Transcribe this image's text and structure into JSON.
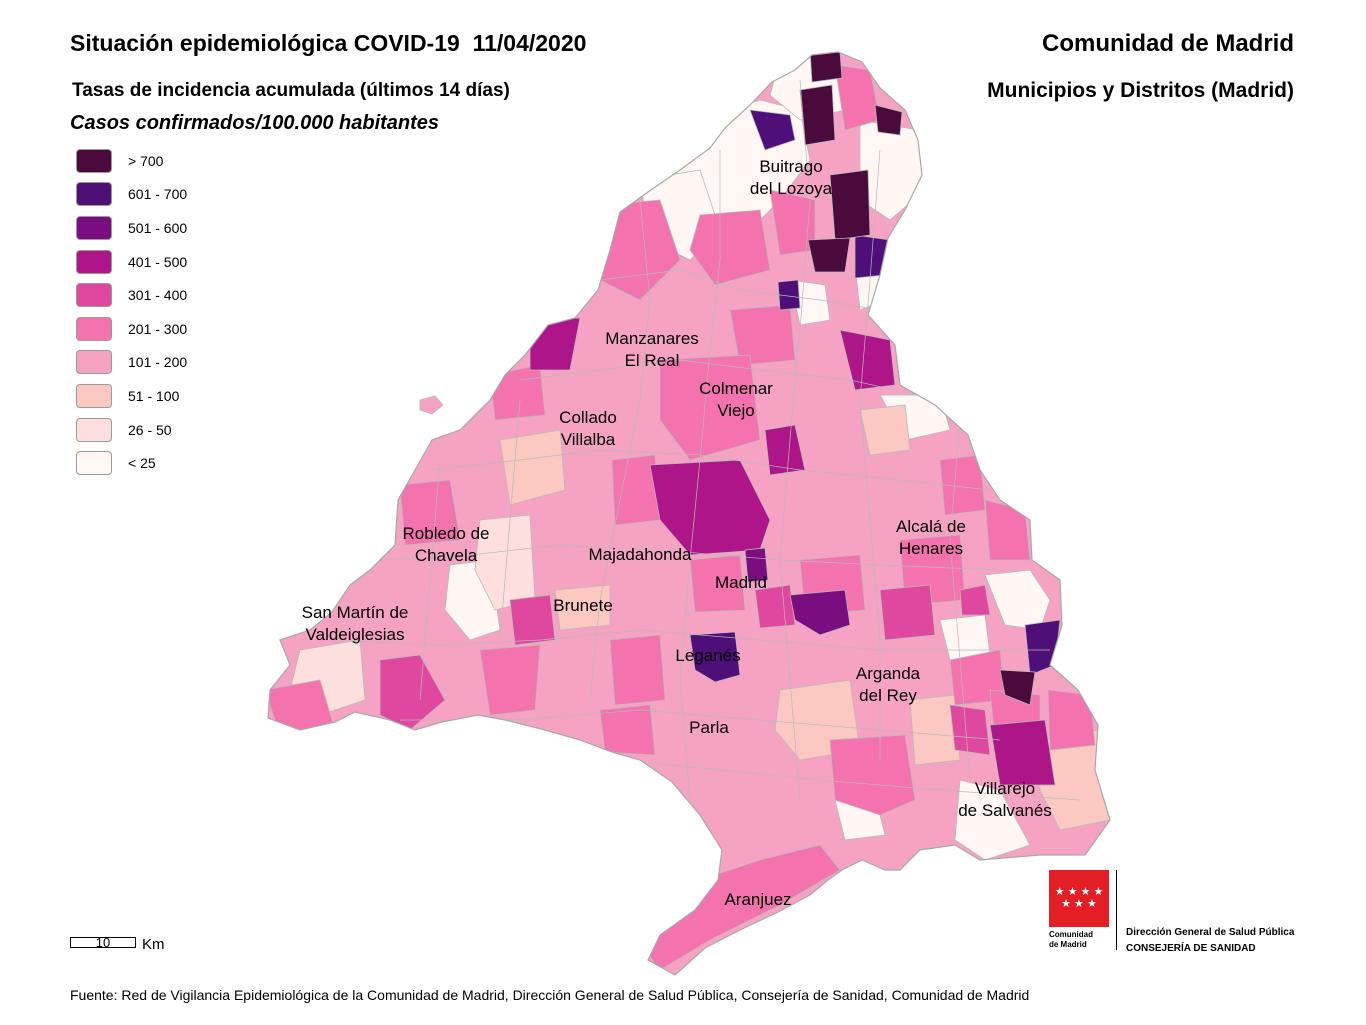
{
  "header": {
    "title": "Situación epidemiológica COVID-19  11/04/2020",
    "subtitle": "Tasas de incidencia acumulada (últimos 14 días)",
    "subtitle2": "Casos confirmados/100.000 habitantes",
    "region": "Comunidad de Madrid",
    "scope": "Municipios y Distritos (Madrid)"
  },
  "legend": {
    "items": [
      {
        "label": "> 700",
        "color": "#4a0a3b"
      },
      {
        "label": "601 - 700",
        "color": "#4e0f78"
      },
      {
        "label": "501 - 600",
        "color": "#7a0e80"
      },
      {
        "label": "401 - 500",
        "color": "#ad1589"
      },
      {
        "label": "301 - 400",
        "color": "#e0479f"
      },
      {
        "label": "201 - 300",
        "color": "#f472ad"
      },
      {
        "label": "101 - 200",
        "color": "#f6a3c3"
      },
      {
        "label": "51 - 100",
        "color": "#fbc8c2"
      },
      {
        "label": "26 - 50",
        "color": "#fde0dd"
      },
      {
        "label": "< 25",
        "color": "#fff7f3"
      }
    ]
  },
  "places": [
    {
      "line1": "Buitrago",
      "line2": "del Lozoya"
    },
    {
      "line1": "Manzanares",
      "line2": "El Real"
    },
    {
      "line1": "Colmenar",
      "line2": "Viejo"
    },
    {
      "line1": "Collado",
      "line2": "Villalba"
    },
    {
      "line1": "Robledo de",
      "line2": "Chavela"
    },
    {
      "line1": "Alcalá de",
      "line2": "Henares"
    },
    {
      "line1": "Majadahonda",
      "line2": ""
    },
    {
      "line1": "Madrid",
      "line2": ""
    },
    {
      "line1": "Brunete",
      "line2": ""
    },
    {
      "line1": "San Martín de",
      "line2": "Valdeiglesias"
    },
    {
      "line1": "Leganés",
      "line2": ""
    },
    {
      "line1": "Arganda",
      "line2": "del Rey"
    },
    {
      "line1": "Parla",
      "line2": ""
    },
    {
      "line1": "Villarejo",
      "line2": "de Salvanés"
    },
    {
      "line1": "Aranjuez",
      "line2": ""
    }
  ],
  "scale": {
    "value": "10",
    "unit": "Km"
  },
  "source": "Fuente: Red de Vigilancia Epidemiológica de la Comunidad de Madrid, Dirección General de Salud Pública, Consejería de Sanidad, Comunidad de Madrid",
  "logo": {
    "stars": "★ ★ ★ ★\n★ ★ ★",
    "line1": "Comunidad",
    "line2": "de Madrid"
  },
  "department": {
    "line1": "Dirección General de Salud Pública",
    "line2": "CONSEJERÍA DE SANIDAD"
  }
}
